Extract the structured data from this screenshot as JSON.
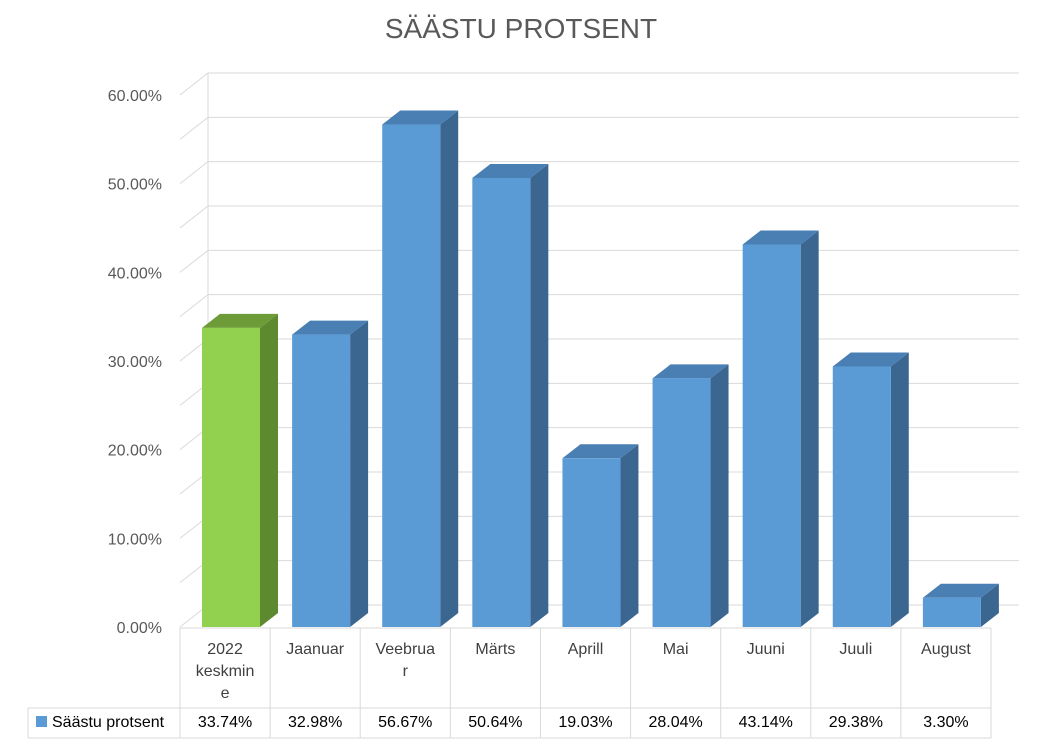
{
  "chart_data": {
    "type": "bar",
    "title": "SÄÄSTU PROTSENT",
    "xlabel": "",
    "ylabel": "",
    "ylim": [
      0,
      0.6
    ],
    "y_ticks": [
      "0.00%",
      "10.00%",
      "20.00%",
      "30.00%",
      "40.00%",
      "50.00%",
      "60.00%"
    ],
    "category_lines": [
      [
        "2022",
        "keskmin",
        "e"
      ],
      [
        "Jaanuar"
      ],
      [
        "Veebrua",
        "r"
      ],
      [
        "Märts"
      ],
      [
        "Aprill"
      ],
      [
        "Mai"
      ],
      [
        "Juuni"
      ],
      [
        "Juuli"
      ],
      [
        "August"
      ]
    ],
    "series": [
      {
        "name": "Säästu protsent",
        "values": [
          0.3374,
          0.3298,
          0.5667,
          0.5064,
          0.1903,
          0.2804,
          0.4314,
          0.2938,
          0.033
        ],
        "labels": [
          "33.74%",
          "32.98%",
          "56.67%",
          "50.64%",
          "19.03%",
          "28.04%",
          "43.14%",
          "29.38%",
          "3.30%"
        ]
      }
    ],
    "highlight_index": 0,
    "grid": true,
    "legend": "data-table",
    "colors": {
      "bar_front": "#5b9bd5",
      "bar_top": "#4a7fb3",
      "bar_side": "#3a6690",
      "highlight_front": "#92d050",
      "highlight_top": "#6d9b38",
      "highlight_side": "#5d8a2f",
      "gridline": "#d9d9d9",
      "table_line": "#d9d9d9"
    }
  }
}
